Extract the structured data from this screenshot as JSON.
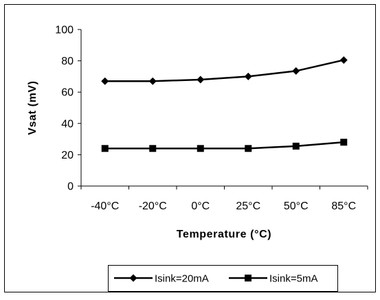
{
  "chart_data": {
    "type": "line",
    "categories": [
      "-40°C",
      "-20°C",
      "0°C",
      "25°C",
      "50°C",
      "85°C"
    ],
    "series": [
      {
        "name": "Isink=20mA",
        "values": [
          67,
          67,
          68,
          70,
          73.5,
          80.5
        ],
        "marker": "diamond",
        "color": "#000000"
      },
      {
        "name": "Isink=5mA",
        "values": [
          24,
          24,
          24,
          24,
          25.5,
          28
        ],
        "marker": "square",
        "color": "#000000"
      }
    ],
    "title": "",
    "xlabel": "Temperature (°C)",
    "ylabel": "Vsat (mV)",
    "ylim": [
      0,
      100
    ],
    "yticks": [
      "0",
      "20",
      "40",
      "60",
      "80",
      "100"
    ],
    "grid": false,
    "legend_position": "bottom"
  }
}
